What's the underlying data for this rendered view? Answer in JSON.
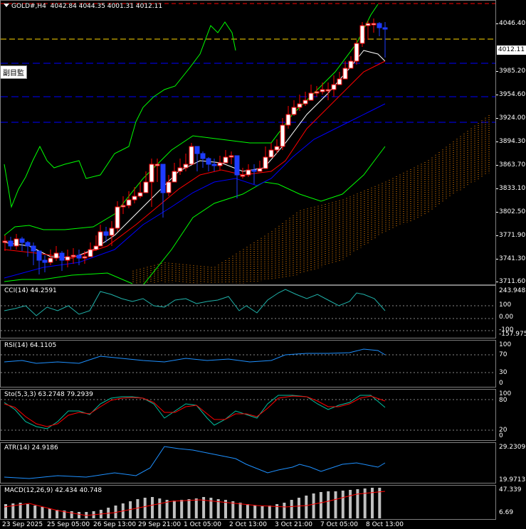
{
  "symbol_header": {
    "symbol": "GOLD#,H4",
    "ohlc": "4042.84 4044.35 4001.31 4012.11"
  },
  "side_label": "副目監",
  "current_price": "4012.11",
  "price_axis": [
    "4046.40",
    "3985.20",
    "3954.60",
    "3924.00",
    "3894.30",
    "3863.70",
    "3833.10",
    "3802.50",
    "3771.90",
    "3741.30",
    "3711.60"
  ],
  "indicators": {
    "cci": {
      "title": "CCI(14) 44.2591",
      "axis": [
        "243.9482",
        "100",
        "0.00",
        "-100",
        "-157.9752"
      ]
    },
    "rsi": {
      "title": "RSI(14) 64.1105",
      "axis": [
        "100",
        "70",
        "30",
        "0"
      ]
    },
    "sto": {
      "title": "Sto(5,3,3) 63.2748 79.2939",
      "axis": [
        "100",
        "80",
        "20",
        "0"
      ]
    },
    "atr": {
      "title": "ATR(14) 24.9186",
      "axis": [
        "29.2309",
        "19.9713"
      ]
    },
    "macd": {
      "title": "MACD(12,26,9) 42.434 40.748",
      "axis": [
        "47.339",
        "6.69"
      ]
    }
  },
  "time_axis": [
    "23 Sep 2025",
    "25 Sep 05:00",
    "26 Sep 13:00",
    "29 Sep 21:00",
    "1 Oct 05:00",
    "2 Oct 13:00",
    "3 Oct 21:00",
    "7 Oct 05:00",
    "8 Oct 13:00"
  ],
  "colors": {
    "bull": "#ffffff",
    "bear": "#1e3cff",
    "up_wick": "#ff0000",
    "ma_fast": "#ffffff",
    "ma_mid": "#ff0000",
    "ma_slow": "#0000ff",
    "bb": "#00ff00",
    "cloud": "#ff8c00",
    "sto_main": "#00c0a0",
    "sto_signal": "#ff0000",
    "cci": "#20b2aa",
    "rsi": "#1e90ff",
    "atr": "#1e90ff",
    "macd_hist": "#c0c0c0",
    "macd_signal": "#ff0000"
  }
}
